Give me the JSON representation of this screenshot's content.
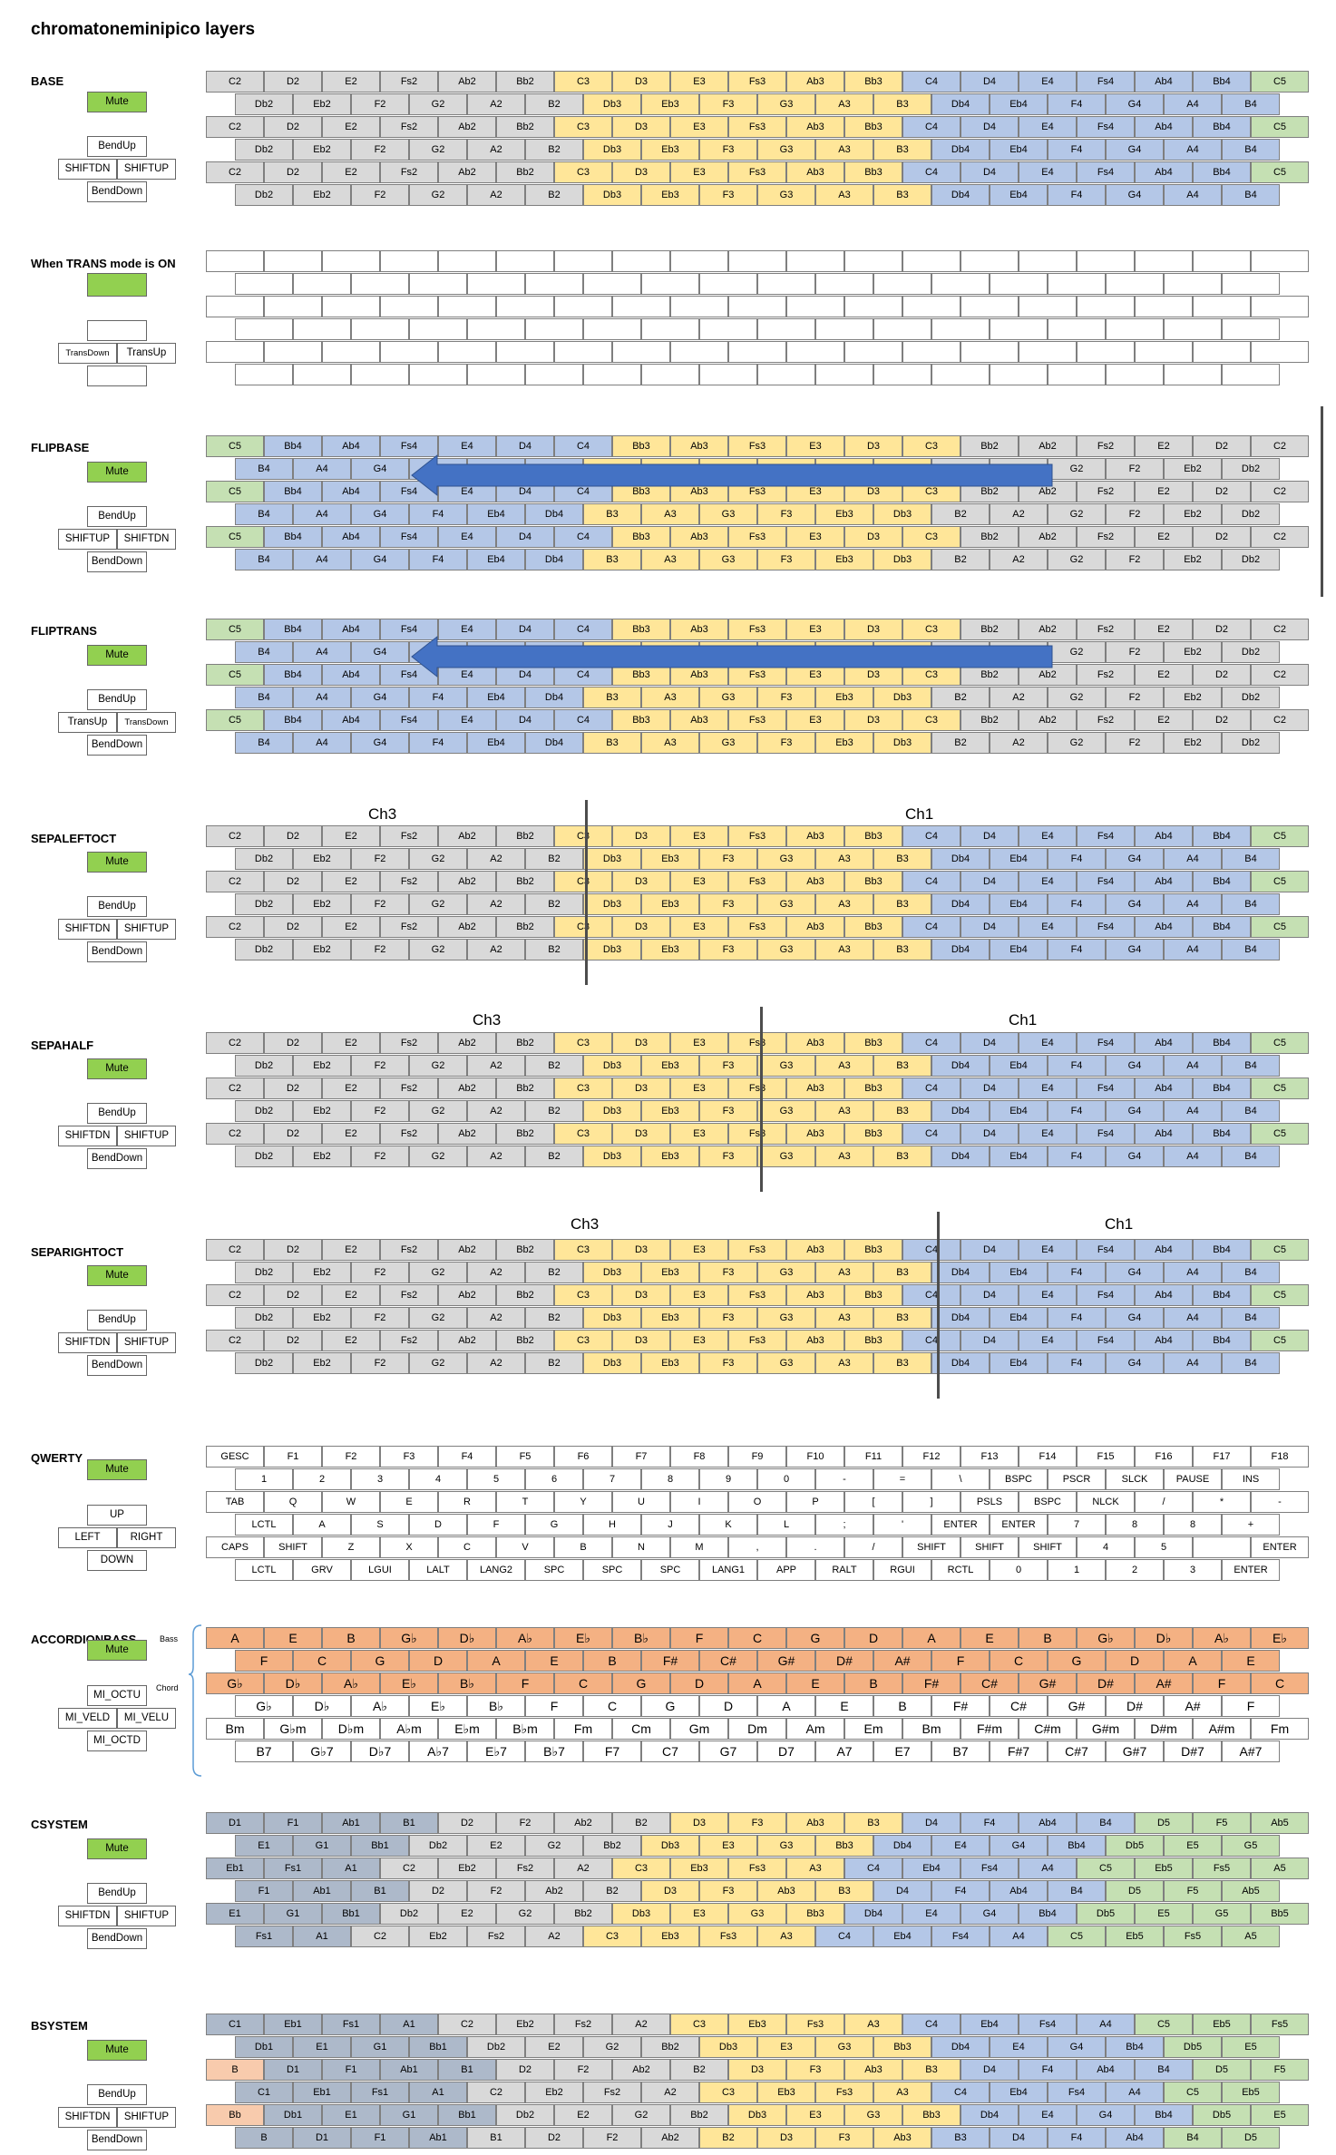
{
  "title": "chromatoneminipico layers",
  "layers": [
    {
      "name": "BASE",
      "buttons": [
        "Mute",
        "BendUp",
        "SHIFTDN",
        "SHIFTUP",
        "BendDown"
      ]
    },
    {
      "name": "When TRANS mode is ON",
      "buttons": [
        "TransDown",
        "TransUp"
      ]
    },
    {
      "name": "FLIPBASE",
      "buttons": [
        "Mute",
        "BendUp",
        "SHIFTUP",
        "SHIFTDN",
        "BendDown"
      ]
    },
    {
      "name": "FLIPTRANS",
      "buttons": [
        "Mute",
        "BendUp",
        "TransUp",
        "TransDown",
        "BendDown"
      ]
    },
    {
      "name": "SEPALEFTOCT",
      "buttons": [
        "Mute",
        "BendUp",
        "SHIFTDN",
        "SHIFTUP",
        "BendDown"
      ],
      "channels": [
        "Ch3",
        "Ch1"
      ]
    },
    {
      "name": "SEPAHALF",
      "buttons": [
        "Mute",
        "BendUp",
        "SHIFTDN",
        "SHIFTUP",
        "BendDown"
      ],
      "channels": [
        "Ch3",
        "Ch1"
      ]
    },
    {
      "name": "SEPARIGHTOCT",
      "buttons": [
        "Mute",
        "BendUp",
        "SHIFTDN",
        "SHIFTUP",
        "BendDown"
      ],
      "channels": [
        "Ch3",
        "Ch1"
      ]
    },
    {
      "name": "QWERTY",
      "buttons": [
        "Mute",
        "UP",
        "LEFT",
        "RIGHT",
        "DOWN"
      ]
    },
    {
      "name": "ACCORDIONBASS",
      "buttons": [
        "Mute",
        "MI_OCTU",
        "MI_VELD",
        "MI_VELU",
        "MI_OCTD"
      ],
      "side_labels": [
        "Bass",
        "Chord"
      ]
    },
    {
      "name": "CSYSTEM",
      "buttons": [
        "Mute",
        "BendUp",
        "SHIFTDN",
        "SHIFTUP",
        "BendDown"
      ]
    },
    {
      "name": "BSYSTEM",
      "buttons": [
        "Mute",
        "BendUp",
        "SHIFTDN",
        "SHIFTUP",
        "BendDown"
      ]
    }
  ],
  "rows": {
    "base_a": [
      "C2",
      "D2",
      "E2",
      "Fs2",
      "Ab2",
      "Bb2",
      "C3",
      "D3",
      "E3",
      "Fs3",
      "Ab3",
      "Bb3",
      "C4",
      "D4",
      "E4",
      "Fs4",
      "Ab4",
      "Bb4",
      "C5"
    ],
    "base_b": [
      "Db2",
      "Eb2",
      "F2",
      "G2",
      "A2",
      "B2",
      "Db3",
      "Eb3",
      "F3",
      "G3",
      "A3",
      "B3",
      "Db4",
      "Eb4",
      "F4",
      "G4",
      "A4",
      "B4"
    ],
    "flip_a": [
      "C5",
      "Bb4",
      "Ab4",
      "Fs4",
      "E4",
      "D4",
      "C4",
      "Bb3",
      "Ab3",
      "Fs3",
      "E3",
      "D3",
      "C3",
      "Bb2",
      "Ab2",
      "Fs2",
      "E2",
      "D2",
      "C2"
    ],
    "flip_b": [
      "B4",
      "A4",
      "G4",
      "F4",
      "Eb4",
      "Db4",
      "B3",
      "A3",
      "G3",
      "F3",
      "Eb3",
      "Db3",
      "B2",
      "A2",
      "G2",
      "F2",
      "Eb2",
      "Db2"
    ],
    "q1": [
      "GESC",
      "F1",
      "F2",
      "F3",
      "F4",
      "F5",
      "F6",
      "F7",
      "F8",
      "F9",
      "F10",
      "F11",
      "F12",
      "F13",
      "F14",
      "F15",
      "F16",
      "F17",
      "F18"
    ],
    "q2": [
      "1",
      "2",
      "3",
      "4",
      "5",
      "6",
      "7",
      "8",
      "9",
      "0",
      "-",
      "=",
      "\\",
      "BSPC",
      "PSCR",
      "SLCK",
      "PAUSE",
      "INS"
    ],
    "q3": [
      "TAB",
      "Q",
      "W",
      "E",
      "R",
      "T",
      "Y",
      "U",
      "I",
      "O",
      "P",
      "[",
      "]",
      "PSLS",
      "BSPC",
      "NLCK",
      "/",
      "*",
      "-"
    ],
    "q4": [
      "LCTL",
      "A",
      "S",
      "D",
      "F",
      "G",
      "H",
      "J",
      "K",
      "L",
      ";",
      "'",
      "ENTER",
      "ENTER",
      "7",
      "8",
      "8",
      "+"
    ],
    "q5": [
      "CAPS",
      "SHIFT",
      "Z",
      "X",
      "C",
      "V",
      "B",
      "N",
      "M",
      ",",
      ".",
      "/",
      "SHIFT",
      "SHIFT",
      "SHIFT",
      "4",
      "5",
      "",
      "ENTER"
    ],
    "q6": [
      "LCTL",
      "GRV",
      "LGUI",
      "LALT",
      "LANG2",
      "SPC",
      "SPC",
      "SPC",
      "LANG1",
      "APP",
      "RALT",
      "RGUI",
      "RCTL",
      "0",
      "1",
      "2",
      "3",
      "ENTER"
    ],
    "acc1": [
      "A",
      "E",
      "B",
      "G♭",
      "D♭",
      "A♭",
      "E♭",
      "B♭",
      "F",
      "C",
      "G",
      "D",
      "A",
      "E",
      "B",
      "G♭",
      "D♭",
      "A♭",
      "E♭"
    ],
    "acc2": [
      "F",
      "C",
      "G",
      "D",
      "A",
      "E",
      "B",
      "F#",
      "C#",
      "G#",
      "D#",
      "A#",
      "F",
      "C",
      "G",
      "D",
      "A",
      "E"
    ],
    "acc3": [
      "G♭",
      "D♭",
      "A♭",
      "E♭",
      "B♭",
      "F",
      "C",
      "G",
      "D",
      "A",
      "E",
      "B",
      "F#",
      "C#",
      "G#",
      "D#",
      "A#",
      "F",
      "C"
    ],
    "acc4": [
      "G♭",
      "D♭",
      "A♭",
      "E♭",
      "B♭",
      "F",
      "C",
      "G",
      "D",
      "A",
      "E",
      "B",
      "F#",
      "C#",
      "G#",
      "D#",
      "A#",
      "F"
    ],
    "acc5": [
      "Bm",
      "G♭m",
      "D♭m",
      "A♭m",
      "E♭m",
      "B♭m",
      "Fm",
      "Cm",
      "Gm",
      "Dm",
      "Am",
      "Em",
      "Bm",
      "F#m",
      "C#m",
      "G#m",
      "D#m",
      "A#m",
      "Fm"
    ],
    "acc6": [
      "B7",
      "G♭7",
      "D♭7",
      "A♭7",
      "E♭7",
      "B♭7",
      "F7",
      "C7",
      "G7",
      "D7",
      "A7",
      "E7",
      "B7",
      "F#7",
      "C#7",
      "G#7",
      "D#7",
      "A#7"
    ],
    "cs1": [
      "D1",
      "F1",
      "Ab1",
      "B1",
      "D2",
      "F2",
      "Ab2",
      "B2",
      "D3",
      "F3",
      "Ab3",
      "B3",
      "D4",
      "F4",
      "Ab4",
      "B4",
      "D5",
      "F5",
      "Ab5"
    ],
    "cs2": [
      "E1",
      "G1",
      "Bb1",
      "Db2",
      "E2",
      "G2",
      "Bb2",
      "Db3",
      "E3",
      "G3",
      "Bb3",
      "Db4",
      "E4",
      "G4",
      "Bb4",
      "Db5",
      "E5",
      "G5"
    ],
    "cs3": [
      "Eb1",
      "Fs1",
      "A1",
      "C2",
      "Eb2",
      "Fs2",
      "A2",
      "C3",
      "Eb3",
      "Fs3",
      "A3",
      "C4",
      "Eb4",
      "Fs4",
      "A4",
      "C5",
      "Eb5",
      "Fs5",
      "A5"
    ],
    "cs4": [
      "F1",
      "Ab1",
      "B1",
      "D2",
      "F2",
      "Ab2",
      "B2",
      "D3",
      "F3",
      "Ab3",
      "B3",
      "D4",
      "F4",
      "Ab4",
      "B4",
      "D5",
      "F5",
      "Ab5"
    ],
    "cs5": [
      "E1",
      "G1",
      "Bb1",
      "Db2",
      "E2",
      "G2",
      "Bb2",
      "Db3",
      "E3",
      "G3",
      "Bb3",
      "Db4",
      "E4",
      "G4",
      "Bb4",
      "Db5",
      "E5",
      "G5",
      "Bb5"
    ],
    "cs6": [
      "Fs1",
      "A1",
      "C2",
      "Eb2",
      "Fs2",
      "A2",
      "C3",
      "Eb3",
      "Fs3",
      "A3",
      "C4",
      "Eb4",
      "Fs4",
      "A4",
      "C5",
      "Eb5",
      "Fs5",
      "A5"
    ],
    "bs1": [
      "C1",
      "Eb1",
      "Fs1",
      "A1",
      "C2",
      "Eb2",
      "Fs2",
      "A2",
      "C3",
      "Eb3",
      "Fs3",
      "A3",
      "C4",
      "Eb4",
      "Fs4",
      "A4",
      "C5",
      "Eb5",
      "Fs5"
    ],
    "bs2": [
      "Db1",
      "E1",
      "G1",
      "Bb1",
      "Db2",
      "E2",
      "G2",
      "Bb2",
      "Db3",
      "E3",
      "G3",
      "Bb3",
      "Db4",
      "E4",
      "G4",
      "Bb4",
      "Db5",
      "E5"
    ],
    "bs3": [
      "B",
      "D1",
      "F1",
      "Ab1",
      "B1",
      "D2",
      "F2",
      "Ab2",
      "B2",
      "D3",
      "F3",
      "Ab3",
      "B3",
      "D4",
      "F4",
      "Ab4",
      "B4",
      "D5",
      "F5"
    ],
    "bs4": [
      "C1",
      "Eb1",
      "Fs1",
      "A1",
      "C2",
      "Eb2",
      "Fs2",
      "A2",
      "C3",
      "Eb3",
      "Fs3",
      "A3",
      "C4",
      "Eb4",
      "Fs4",
      "A4",
      "C5",
      "Eb5"
    ],
    "bs5": [
      "Bb",
      "Db1",
      "E1",
      "G1",
      "Bb1",
      "Db2",
      "E2",
      "G2",
      "Bb2",
      "Db3",
      "E3",
      "G3",
      "Bb3",
      "Db4",
      "E4",
      "G4",
      "Bb4",
      "Db5",
      "E5"
    ],
    "bs6": [
      "B",
      "D1",
      "F1",
      "Ab1",
      "B1",
      "D2",
      "F2",
      "Ab2",
      "B2",
      "D3",
      "F3",
      "Ab3",
      "B3",
      "D4",
      "F4",
      "Ab4",
      "B4",
      "D5"
    ]
  },
  "colors": {
    "grey": "#d9d9d9",
    "yellow": "#ffe699",
    "blue": "#b4c7e7",
    "green": "#c5e0b3",
    "orange": "#f4b183",
    "slate": "#adb9ca",
    "peach": "#f8cbad",
    "button_green": "#92d050",
    "arrow": "#4472c4"
  }
}
